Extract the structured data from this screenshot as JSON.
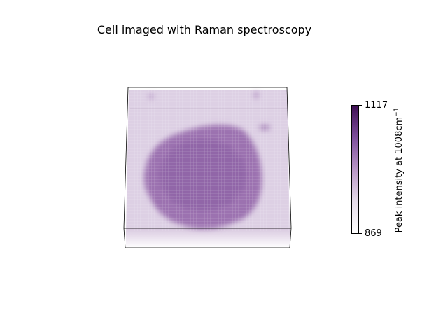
{
  "chart_data": {
    "type": "heatmap",
    "title": "Cell imaged with Raman spectroscopy",
    "colorbar": {
      "label_main": "Peak intensity at 1008cm",
      "label_superscript": "−1",
      "range": [
        869,
        1117
      ],
      "ticks": [
        "1117",
        "869"
      ],
      "colormap": [
        "#ffffff",
        "#e6dcea",
        "#b896c6",
        "#7e4f9c",
        "#3f0f55"
      ]
    },
    "projection": "3d surface, viewed from above",
    "grid": false
  }
}
